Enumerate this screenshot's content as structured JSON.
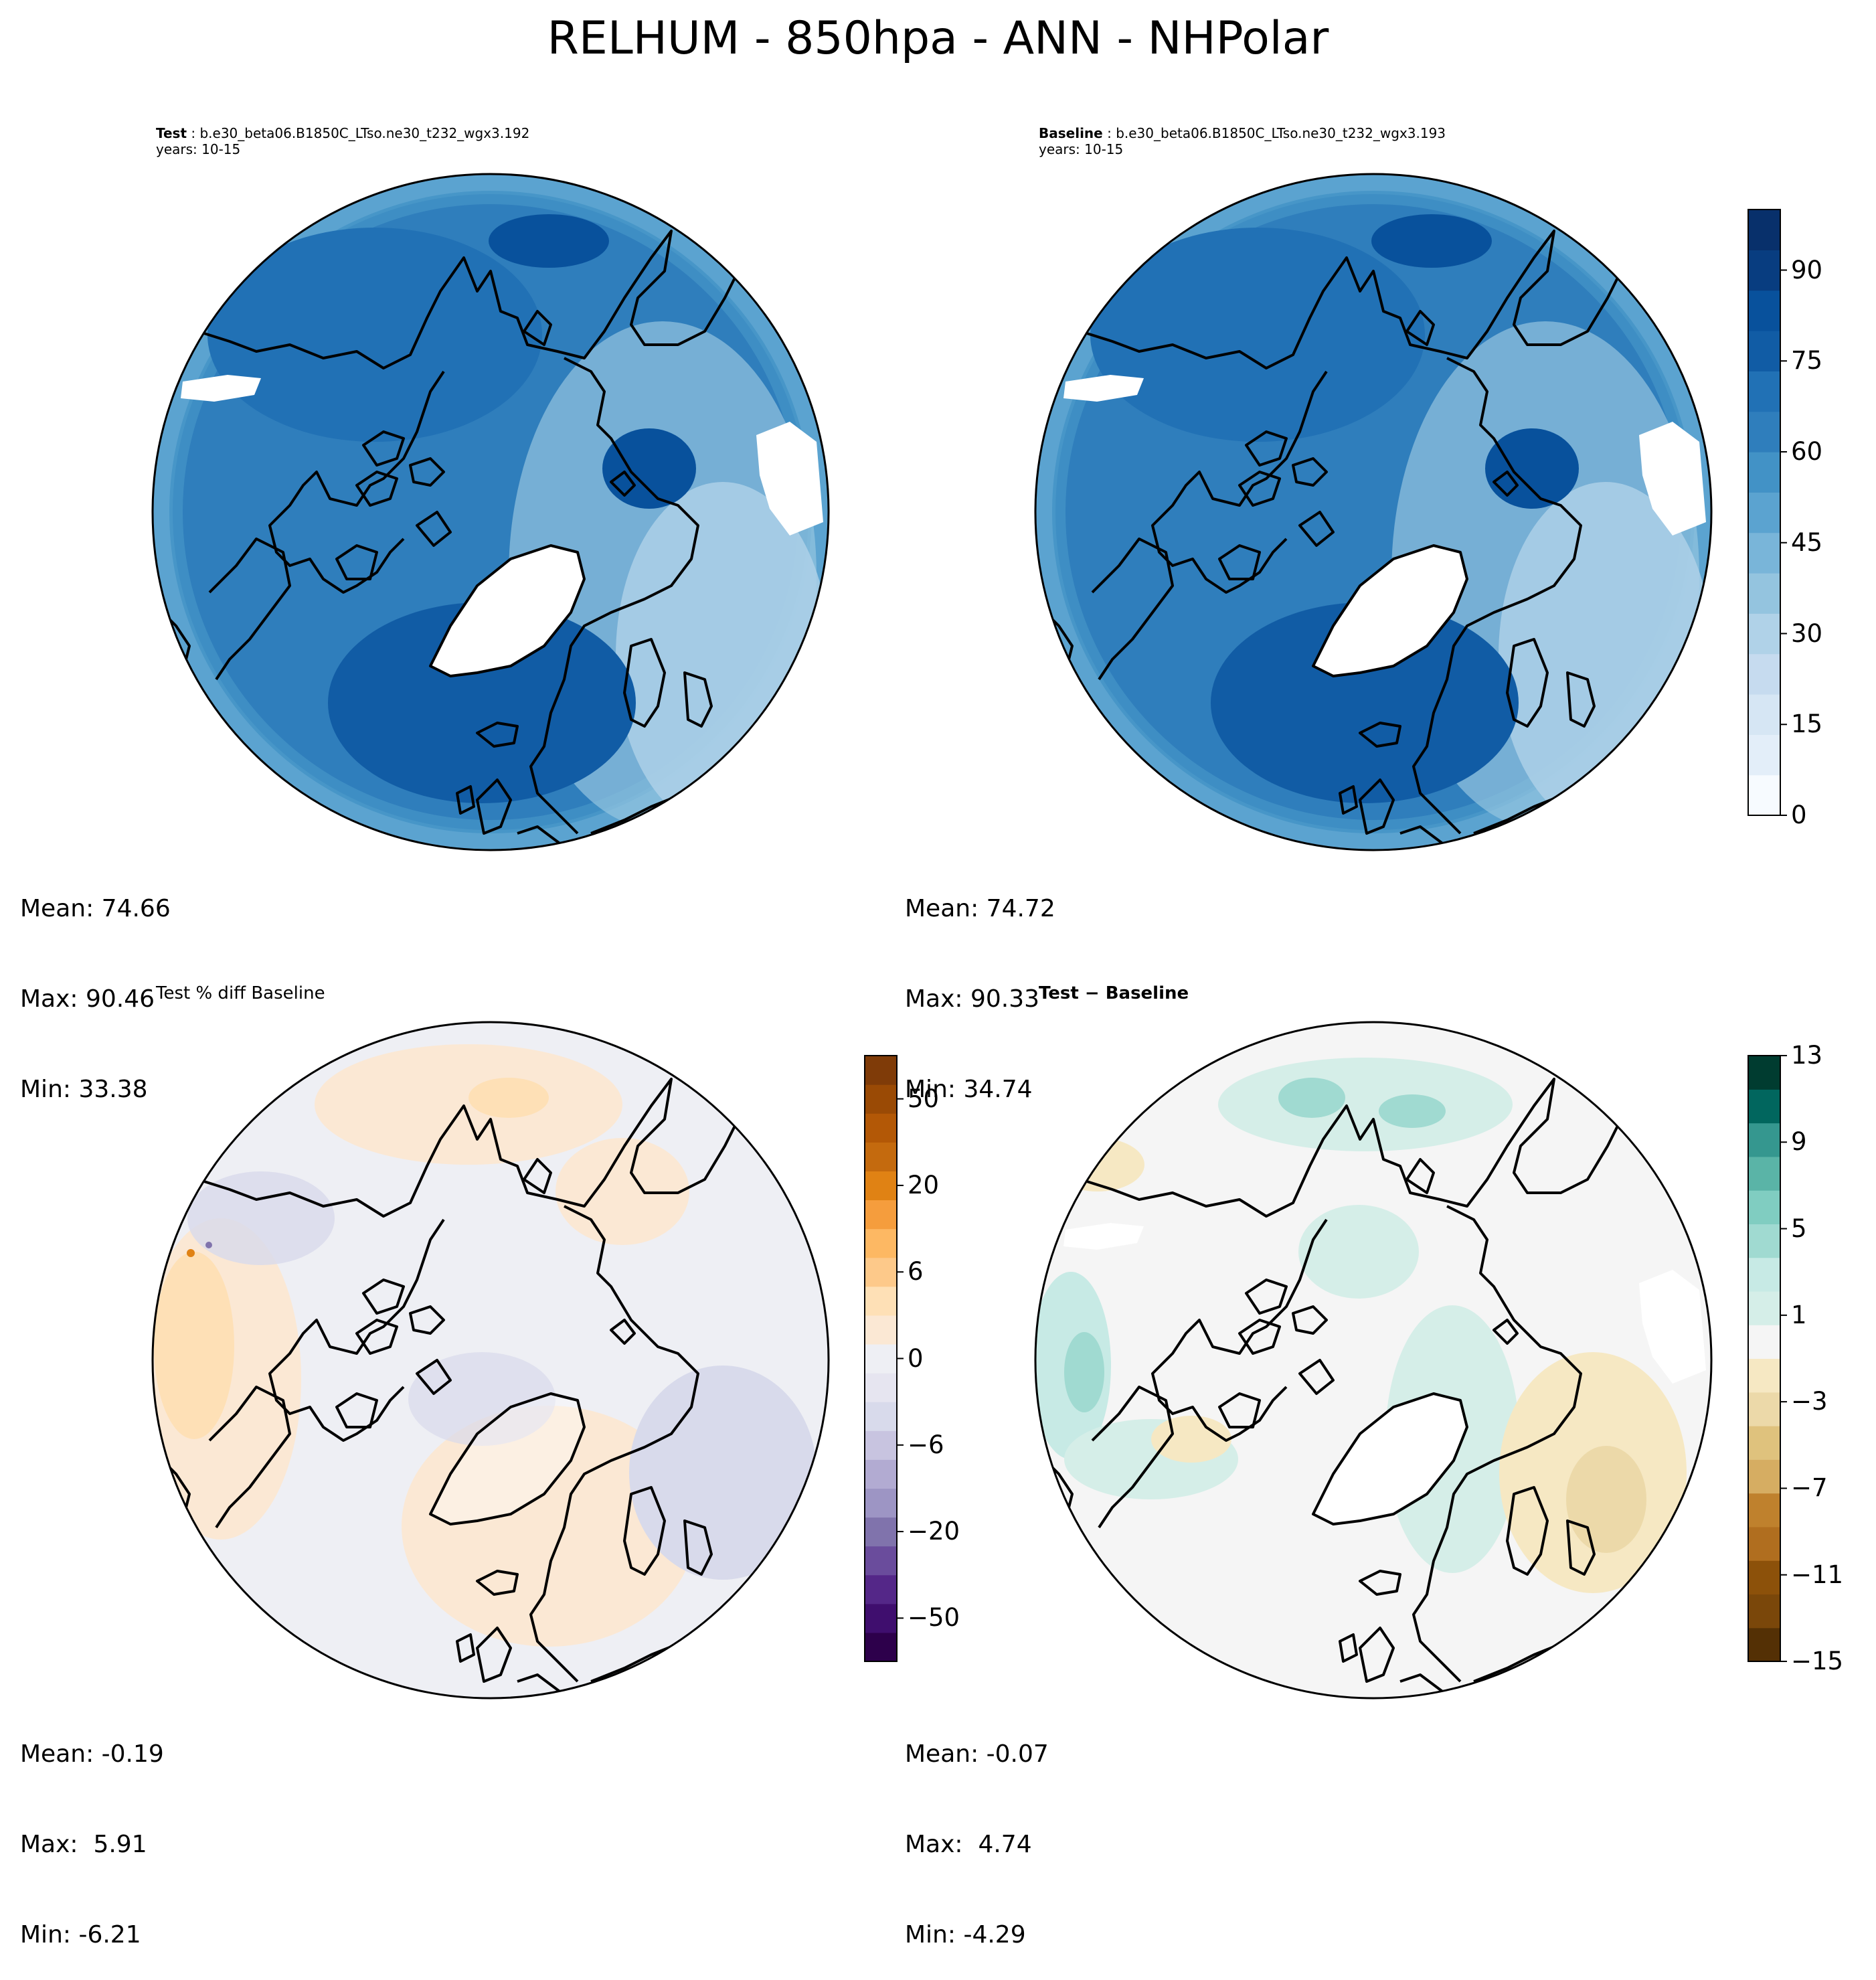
{
  "title": "RELHUM - 850hpa - ANN - NHPolar",
  "panels": [
    {
      "id": "test",
      "title_bold": "Test",
      "title_rest": " : b.e30_beta06.B1850C_LTso.ne30_t232_wgx3.192",
      "subtitle": "years: 10-15",
      "stats": {
        "mean": "Mean: 74.66",
        "max": "Max: 90.46",
        "min": "Min: 33.38"
      },
      "palette": "Blues"
    },
    {
      "id": "baseline",
      "title_bold": "Baseline",
      "title_rest": " : b.e30_beta06.B1850C_LTso.ne30_t232_wgx3.193",
      "subtitle": "years: 10-15",
      "stats": {
        "mean": "Mean: 74.72",
        "max": "Max: 90.33",
        "min": "Min: 34.74"
      },
      "palette": "Blues"
    },
    {
      "id": "pct-diff",
      "title_bold": "",
      "title_rest": "Test % diff Baseline",
      "subtitle": "",
      "stats": {
        "mean": "Mean: -0.19",
        "max": "Max:  5.91",
        "min": "Min: -6.21"
      },
      "palette": "PuOr"
    },
    {
      "id": "diff",
      "title_bold": "Test − Baseline",
      "title_rest": "",
      "subtitle": "",
      "stats": {
        "mean": "Mean: -0.07",
        "max": "Max:  4.74",
        "min": "Min: -4.29"
      },
      "palette": "BrBG"
    }
  ],
  "colorbars": [
    {
      "id": "relhum",
      "ticks": [
        "0",
        "15",
        "30",
        "45",
        "60",
        "75",
        "90"
      ],
      "tick_values": [
        0,
        15,
        30,
        45,
        60,
        75,
        90
      ],
      "range": [
        0,
        100
      ],
      "colors": [
        "#f7fbff",
        "#e3eef9",
        "#d6e6f4",
        "#c6dbef",
        "#b0d2e8",
        "#94c4df",
        "#79b5d9",
        "#5ba3d0",
        "#4292c6",
        "#2f7ebc",
        "#2171b5",
        "#115ca5",
        "#08519c",
        "#083d80",
        "#08306b"
      ]
    },
    {
      "id": "pct",
      "ticks": [
        "−50",
        "−20",
        "−6",
        "0",
        "6",
        "20",
        "50"
      ],
      "colors": [
        "#2d004b",
        "#3f0e6e",
        "#542788",
        "#6a4c9c",
        "#8073ac",
        "#9d95c4",
        "#b2abd2",
        "#c8c4e0",
        "#d8daeb",
        "#e6e5f0",
        "#eeeff4",
        "#fbe8d4",
        "#fee0b6",
        "#fdc98a",
        "#fdb863",
        "#f59d3d",
        "#e08214",
        "#c46a0e",
        "#b35806",
        "#9a4a05",
        "#7f3b08"
      ]
    },
    {
      "id": "absdiff",
      "ticks": [
        "−15",
        "−11",
        "−7",
        "−3",
        "1",
        "5",
        "9",
        "13"
      ],
      "colors": [
        "#543005",
        "#7a470a",
        "#8c510a",
        "#b06e1f",
        "#bf812d",
        "#d6ad62",
        "#dfc27d",
        "#ecd9a9",
        "#f6e8c3",
        "#f5f5f5",
        "#d5eee8",
        "#c7eae5",
        "#a0dad1",
        "#80cdc1",
        "#5ab4a7",
        "#35978f",
        "#01665e",
        "#003c30"
      ]
    }
  ]
}
